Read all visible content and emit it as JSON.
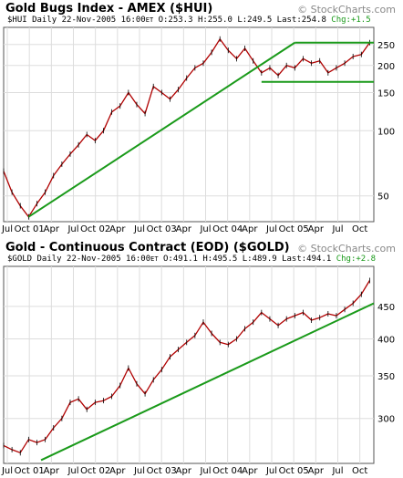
{
  "watermark": "© StockCharts.com",
  "chart_data": [
    {
      "type": "line",
      "title": "Gold Bugs Index - AMEX ($HUI)",
      "subtitle": {
        "symbol": "$HUI Daily",
        "date": "22-Nov-2005 16:00",
        "tz": "ET",
        "open": "O:253.3",
        "high": "H:255.0",
        "low": "L:249.5",
        "last": "Last:254.8",
        "change": "Chg:+1.5"
      },
      "scale": "log",
      "ylim": [
        38,
        300
      ],
      "yticks": [
        "250",
        "200",
        "150",
        "100",
        "50"
      ],
      "xticks": [
        "Jul",
        "Oct 01",
        "Apr",
        "Jul",
        "Oct 02",
        "Apr",
        "Jul",
        "Oct 03",
        "Apr",
        "Jul",
        "Oct 04",
        "Apr",
        "Jul",
        "Oct 05",
        "Apr",
        "Jul",
        "Oct"
      ],
      "series": [
        {
          "values": [
            [
              2001.5,
              65
            ],
            [
              2001.6,
              52
            ],
            [
              2001.7,
              45
            ],
            [
              2001.8,
              40
            ],
            [
              2001.9,
              46
            ],
            [
              2002.0,
              52
            ],
            [
              2002.1,
              62
            ],
            [
              2002.2,
              70
            ],
            [
              2002.3,
              78
            ],
            [
              2002.4,
              86
            ],
            [
              2002.5,
              96
            ],
            [
              2002.6,
              90
            ],
            [
              2002.7,
              100
            ],
            [
              2002.8,
              122
            ],
            [
              2002.9,
              130
            ],
            [
              2003.0,
              150
            ],
            [
              2003.1,
              132
            ],
            [
              2003.2,
              120
            ],
            [
              2003.3,
              160
            ],
            [
              2003.4,
              150
            ],
            [
              2003.5,
              140
            ],
            [
              2003.6,
              155
            ],
            [
              2003.7,
              175
            ],
            [
              2003.8,
              195
            ],
            [
              2003.9,
              205
            ],
            [
              2004.0,
              230
            ],
            [
              2004.1,
              265
            ],
            [
              2004.2,
              235
            ],
            [
              2004.3,
              215
            ],
            [
              2004.4,
              240
            ],
            [
              2004.5,
              210
            ],
            [
              2004.6,
              185
            ],
            [
              2004.7,
              195
            ],
            [
              2004.8,
              180
            ],
            [
              2004.9,
              200
            ],
            [
              2005.0,
              195
            ],
            [
              2005.1,
              215
            ],
            [
              2005.2,
              205
            ],
            [
              2005.3,
              210
            ],
            [
              2005.4,
              185
            ],
            [
              2005.5,
              195
            ],
            [
              2005.6,
              205
            ],
            [
              2005.7,
              220
            ],
            [
              2005.8,
              225
            ],
            [
              2005.9,
              255
            ]
          ]
        }
      ],
      "trendlines": [
        [
          [
            2001.8,
            40
          ],
          [
            2005.0,
            255
          ]
        ],
        [
          [
            2005.0,
            255
          ],
          [
            2005.95,
            255
          ]
        ],
        [
          [
            2004.6,
            168
          ],
          [
            2005.95,
            168
          ]
        ]
      ]
    },
    {
      "type": "line",
      "title": "Gold - Continuous Contract (EOD) ($GOLD)",
      "subtitle": {
        "symbol": "$GOLD Daily",
        "date": "22-Nov-2005 16:00",
        "tz": "ET",
        "open": "O:491.1",
        "high": "H:495.5",
        "low": "L:489.9",
        "last": "Last:494.1",
        "change": "Chg:+2.8"
      },
      "scale": "log",
      "ylim": [
        255,
        520
      ],
      "yticks": [
        "450",
        "400",
        "350",
        "300"
      ],
      "xticks": [
        "Jul",
        "Oct 01",
        "Apr",
        "Jul",
        "Oct 02",
        "Apr",
        "Jul",
        "Oct 03",
        "Apr",
        "Jul",
        "Oct 04",
        "Apr",
        "Jul",
        "Oct 05",
        "Apr",
        "Jul",
        "Oct"
      ],
      "series": [
        {
          "values": [
            [
              2001.5,
              272
            ],
            [
              2001.6,
              268
            ],
            [
              2001.7,
              265
            ],
            [
              2001.8,
              278
            ],
            [
              2001.9,
              275
            ],
            [
              2002.0,
              278
            ],
            [
              2002.1,
              290
            ],
            [
              2002.2,
              300
            ],
            [
              2002.3,
              318
            ],
            [
              2002.4,
              322
            ],
            [
              2002.5,
              310
            ],
            [
              2002.6,
              318
            ],
            [
              2002.7,
              320
            ],
            [
              2002.8,
              325
            ],
            [
              2002.9,
              338
            ],
            [
              2003.0,
              360
            ],
            [
              2003.1,
              340
            ],
            [
              2003.2,
              328
            ],
            [
              2003.3,
              345
            ],
            [
              2003.4,
              358
            ],
            [
              2003.5,
              375
            ],
            [
              2003.6,
              385
            ],
            [
              2003.7,
              395
            ],
            [
              2003.8,
              405
            ],
            [
              2003.9,
              425
            ],
            [
              2004.0,
              408
            ],
            [
              2004.1,
              395
            ],
            [
              2004.2,
              392
            ],
            [
              2004.3,
              400
            ],
            [
              2004.4,
              415
            ],
            [
              2004.5,
              425
            ],
            [
              2004.6,
              440
            ],
            [
              2004.7,
              430
            ],
            [
              2004.8,
              420
            ],
            [
              2004.9,
              430
            ],
            [
              2005.0,
              435
            ],
            [
              2005.1,
              440
            ],
            [
              2005.2,
              428
            ],
            [
              2005.3,
              432
            ],
            [
              2005.4,
              438
            ],
            [
              2005.5,
              435
            ],
            [
              2005.6,
              445
            ],
            [
              2005.7,
              455
            ],
            [
              2005.8,
              470
            ],
            [
              2005.9,
              494
            ]
          ]
        }
      ],
      "trendlines": [
        [
          [
            2001.95,
            258
          ],
          [
            2005.95,
            455
          ]
        ]
      ]
    }
  ]
}
